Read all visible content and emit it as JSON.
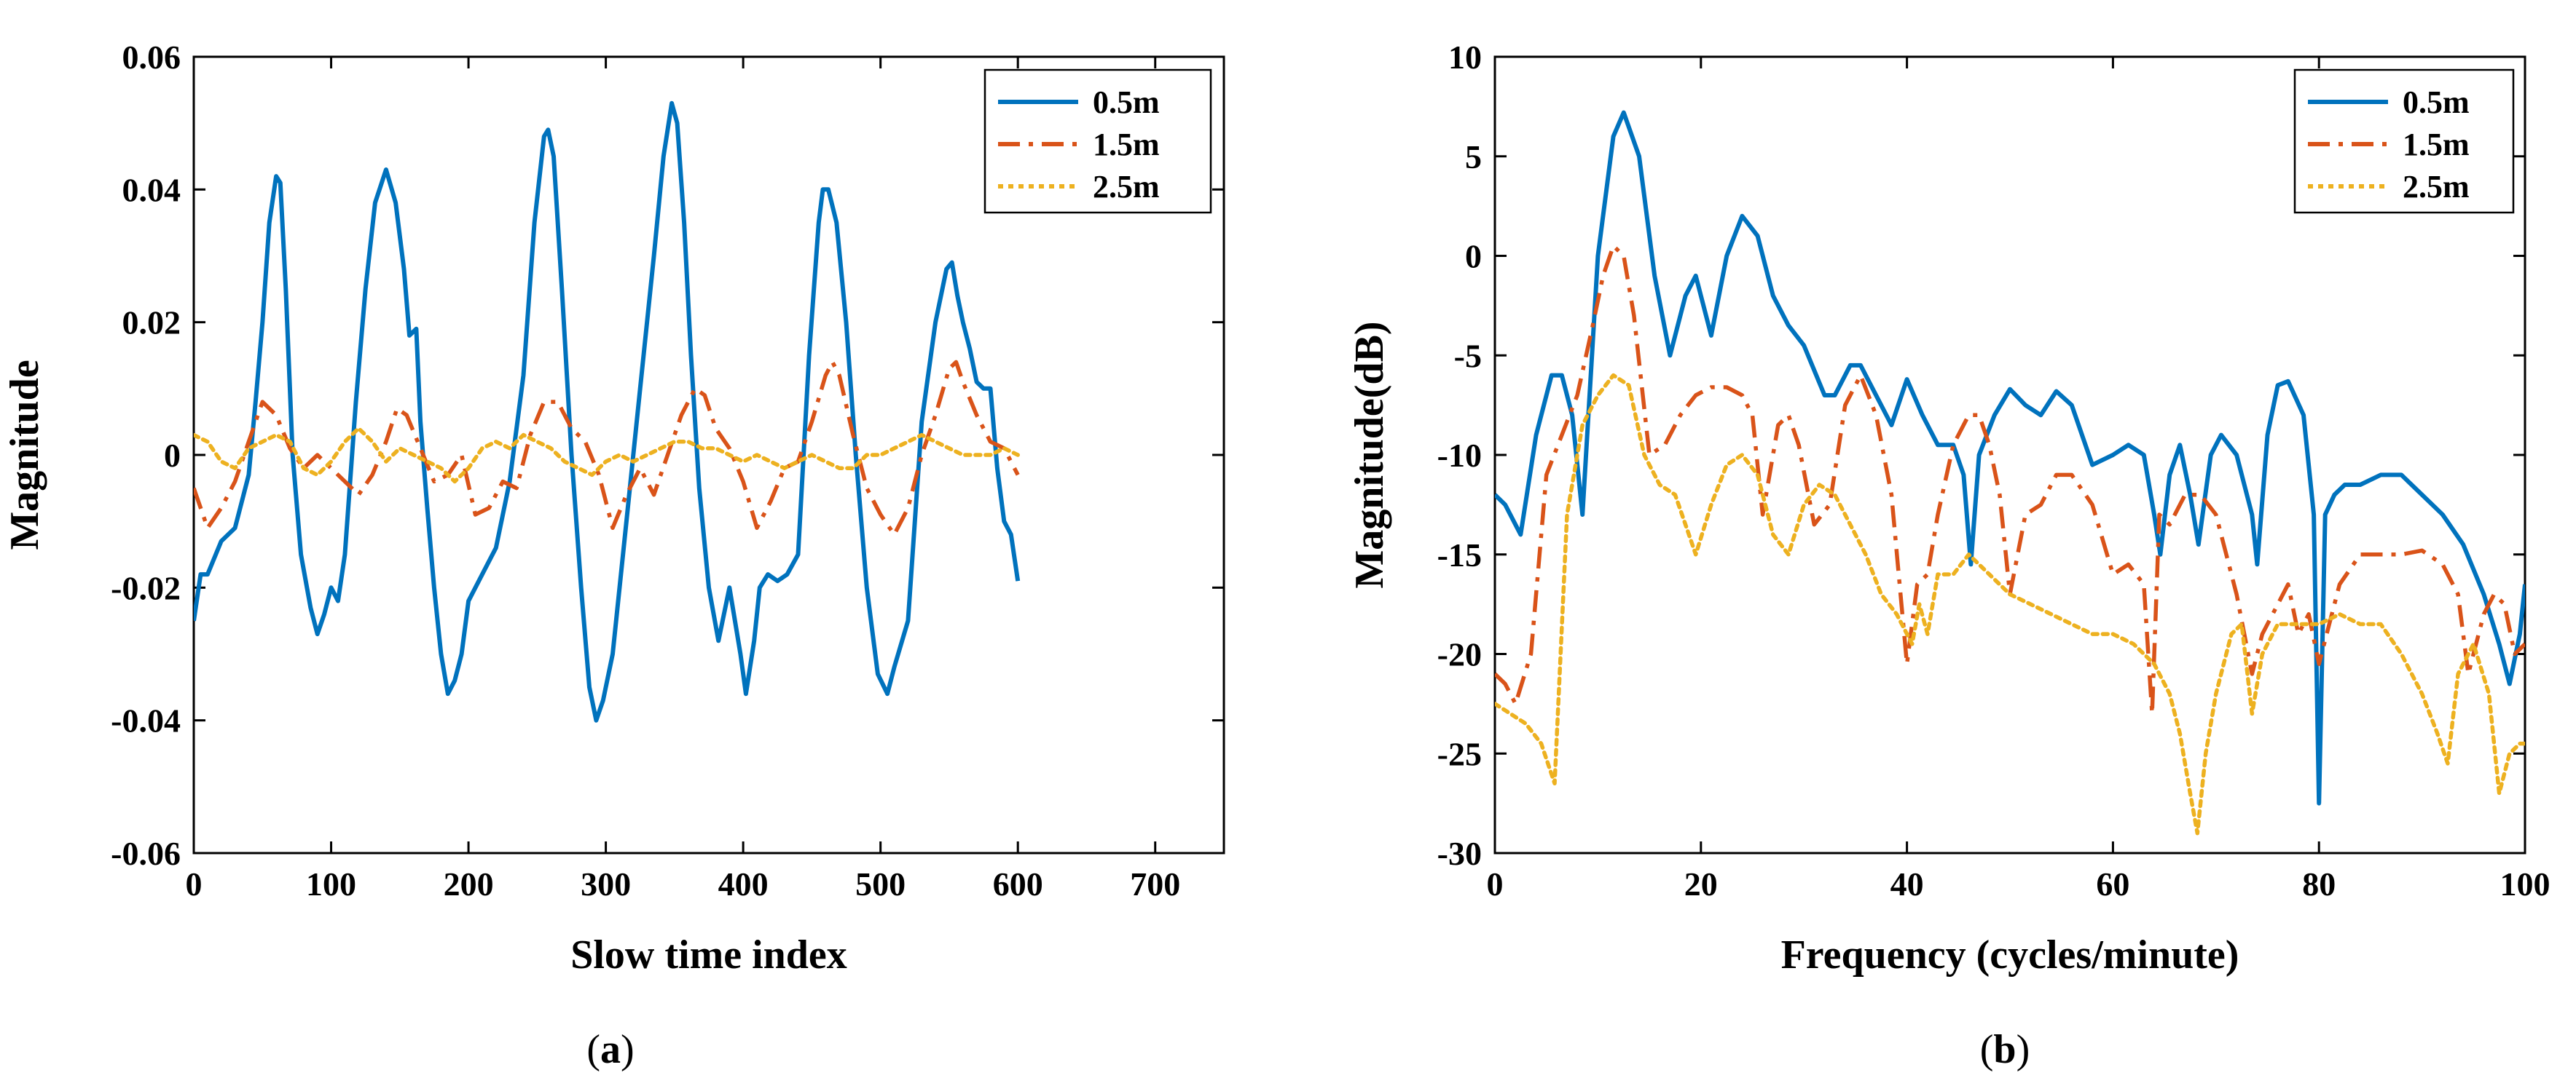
{
  "chart_data": [
    {
      "id": "a",
      "type": "line",
      "panel_label": {
        "open": "(",
        "letter": "a",
        "close": ")"
      },
      "title": "",
      "xlabel": "Slow time index",
      "ylabel": "Magnitude",
      "xlim": [
        0,
        750
      ],
      "ylim": [
        -0.06,
        0.06
      ],
      "xticks": [
        0,
        100,
        200,
        300,
        400,
        500,
        600,
        700
      ],
      "xtick_labels": [
        "0",
        "100",
        "200",
        "300",
        "400",
        "500",
        "600",
        "700"
      ],
      "yticks": [
        -0.06,
        -0.04,
        -0.02,
        0,
        0.02,
        0.04,
        0.06
      ],
      "ytick_labels": [
        "-0.06",
        "-0.04",
        "-0.02",
        "0",
        "0.02",
        "0.04",
        "0.06"
      ],
      "legend_position": "top-right",
      "series": [
        {
          "name": "0.5m",
          "color": "#0072BD",
          "style": "solid",
          "x": [
            0,
            5,
            10,
            20,
            30,
            40,
            45,
            50,
            55,
            60,
            63,
            67,
            72,
            78,
            85,
            90,
            95,
            100,
            105,
            110,
            118,
            125,
            132,
            140,
            147,
            153,
            157,
            162,
            165,
            170,
            175,
            180,
            185,
            190,
            195,
            200,
            210,
            220,
            230,
            240,
            248,
            255,
            258,
            262,
            268,
            275,
            282,
            288,
            293,
            298,
            305,
            315,
            325,
            335,
            342,
            348,
            352,
            357,
            362,
            368,
            375,
            382,
            390,
            398,
            402,
            408,
            412,
            418,
            425,
            432,
            440,
            448,
            455,
            458,
            462,
            468,
            475,
            482,
            490,
            498,
            505,
            510,
            520,
            530,
            540,
            548,
            552,
            556,
            560,
            565,
            570,
            575,
            580,
            585,
            590,
            595,
            600
          ],
          "y": [
            -0.025,
            -0.018,
            -0.018,
            -0.013,
            -0.011,
            -0.003,
            0.008,
            0.02,
            0.035,
            0.042,
            0.041,
            0.025,
            0.0,
            -0.015,
            -0.023,
            -0.027,
            -0.024,
            -0.02,
            -0.022,
            -0.015,
            0.008,
            0.025,
            0.038,
            0.043,
            0.038,
            0.028,
            0.018,
            0.019,
            0.005,
            -0.008,
            -0.02,
            -0.03,
            -0.036,
            -0.034,
            -0.03,
            -0.022,
            -0.018,
            -0.014,
            -0.004,
            0.012,
            0.035,
            0.048,
            0.049,
            0.045,
            0.025,
            0.0,
            -0.02,
            -0.035,
            -0.04,
            -0.037,
            -0.03,
            -0.01,
            0.01,
            0.03,
            0.045,
            0.053,
            0.05,
            0.035,
            0.015,
            -0.005,
            -0.02,
            -0.028,
            -0.02,
            -0.03,
            -0.036,
            -0.028,
            -0.02,
            -0.018,
            -0.019,
            -0.018,
            -0.015,
            0.015,
            0.035,
            0.04,
            0.04,
            0.035,
            0.02,
            0.0,
            -0.02,
            -0.033,
            -0.036,
            -0.032,
            -0.025,
            0.005,
            0.02,
            0.028,
            0.029,
            0.024,
            0.02,
            0.016,
            0.011,
            0.01,
            0.01,
            -0.002,
            -0.01,
            -0.012,
            -0.019
          ]
        },
        {
          "name": "1.5m",
          "color": "#D95319",
          "style": "dashdot",
          "x": [
            0,
            10,
            20,
            30,
            40,
            50,
            60,
            70,
            80,
            90,
            100,
            110,
            120,
            130,
            140,
            148,
            155,
            165,
            175,
            185,
            195,
            205,
            215,
            225,
            235,
            245,
            255,
            265,
            275,
            285,
            295,
            305,
            315,
            325,
            335,
            345,
            355,
            365,
            372,
            380,
            390,
            400,
            410,
            420,
            430,
            440,
            450,
            460,
            465,
            470,
            480,
            490,
            500,
            510,
            520,
            530,
            540,
            550,
            555,
            560,
            570,
            580,
            590,
            600
          ],
          "y": [
            -0.005,
            -0.011,
            -0.008,
            -0.004,
            0.002,
            0.008,
            0.006,
            0.001,
            -0.002,
            0.0,
            -0.002,
            -0.004,
            -0.006,
            -0.003,
            0.002,
            0.007,
            0.006,
            0.001,
            -0.004,
            -0.003,
            0.0,
            -0.009,
            -0.008,
            -0.004,
            -0.005,
            0.003,
            0.008,
            0.008,
            0.004,
            0.002,
            -0.003,
            -0.011,
            -0.006,
            -0.002,
            -0.006,
            0.0,
            0.006,
            0.01,
            0.009,
            0.004,
            0.001,
            -0.004,
            -0.011,
            -0.007,
            -0.002,
            -0.001,
            0.005,
            0.012,
            0.014,
            0.012,
            0.003,
            -0.005,
            -0.009,
            -0.012,
            -0.008,
            0.0,
            0.006,
            0.013,
            0.014,
            0.011,
            0.006,
            0.002,
            0.001,
            -0.003
          ]
        },
        {
          "name": "2.5m",
          "color": "#EDB120",
          "style": "dotted",
          "x": [
            0,
            10,
            20,
            30,
            40,
            50,
            60,
            70,
            80,
            90,
            100,
            110,
            120,
            130,
            140,
            150,
            160,
            170,
            180,
            190,
            200,
            210,
            220,
            230,
            240,
            250,
            260,
            270,
            280,
            290,
            300,
            310,
            320,
            330,
            340,
            350,
            360,
            370,
            380,
            390,
            400,
            410,
            420,
            430,
            440,
            450,
            460,
            470,
            480,
            490,
            500,
            510,
            520,
            530,
            540,
            550,
            560,
            570,
            580,
            590,
            600
          ],
          "y": [
            0.003,
            0.002,
            -0.001,
            -0.002,
            0.001,
            0.002,
            0.003,
            0.002,
            -0.002,
            -0.003,
            -0.001,
            0.002,
            0.004,
            0.002,
            -0.001,
            0.001,
            0.0,
            -0.001,
            -0.002,
            -0.004,
            -0.002,
            0.001,
            0.002,
            0.001,
            0.003,
            0.002,
            0.001,
            -0.001,
            -0.002,
            -0.003,
            -0.001,
            0.0,
            -0.001,
            0.0,
            0.001,
            0.002,
            0.002,
            0.001,
            0.001,
            0.0,
            -0.001,
            0.0,
            -0.001,
            -0.002,
            -0.001,
            0.0,
            -0.001,
            -0.002,
            -0.002,
            0.0,
            0.0,
            0.001,
            0.002,
            0.003,
            0.002,
            0.001,
            0.0,
            0.0,
            0.0,
            0.001,
            0.0
          ]
        }
      ]
    },
    {
      "id": "b",
      "type": "line",
      "panel_label": {
        "open": "(",
        "letter": "b",
        "close": ")"
      },
      "title": "",
      "xlabel": "Frequency (cycles/minute)",
      "ylabel": "Magnitude(dB)",
      "xlim": [
        0,
        100
      ],
      "ylim": [
        -30,
        10
      ],
      "xticks": [
        0,
        20,
        40,
        60,
        80,
        100
      ],
      "xtick_labels": [
        "0",
        "20",
        "40",
        "60",
        "80",
        "100"
      ],
      "yticks": [
        -30,
        -25,
        -20,
        -15,
        -10,
        -5,
        0,
        5,
        10
      ],
      "ytick_labels": [
        "-30",
        "-25",
        "-20",
        "-15",
        "-10",
        "-5",
        "0",
        "5",
        "10"
      ],
      "legend_position": "top-right",
      "series": [
        {
          "name": "0.5m",
          "color": "#0072BD",
          "style": "solid",
          "x": [
            0,
            1,
            2.5,
            4,
            5.5,
            6.5,
            7.5,
            8.5,
            10,
            11.5,
            12.5,
            14,
            15.5,
            17,
            18.5,
            19.5,
            21,
            22.5,
            24,
            25.5,
            27,
            28.5,
            30,
            32,
            33,
            34.5,
            35.5,
            37,
            38.5,
            40,
            41.5,
            43,
            44.5,
            45.5,
            46.2,
            47,
            48.5,
            50,
            51.5,
            53,
            54.5,
            56,
            58,
            60,
            61.5,
            63,
            64,
            64.6,
            65.5,
            66.5,
            67.5,
            68.3,
            69.5,
            70.5,
            72,
            73.5,
            74,
            75,
            76,
            77,
            78.5,
            79.5,
            80,
            80.6,
            81.5,
            82.5,
            84,
            86,
            88,
            90,
            92,
            94,
            96,
            97.5,
            98.5,
            99.5,
            100
          ],
          "y": [
            -12,
            -12.5,
            -14,
            -9,
            -6,
            -6,
            -8,
            -13,
            0,
            6,
            7.2,
            5,
            -1,
            -5,
            -2,
            -1,
            -4,
            0,
            2,
            1,
            -2,
            -3.5,
            -4.5,
            -7,
            -7,
            -5.5,
            -5.5,
            -7,
            -8.5,
            -6.2,
            -8,
            -9.5,
            -9.5,
            -11,
            -15.5,
            -10,
            -8,
            -6.7,
            -7.5,
            -8,
            -6.8,
            -7.5,
            -10.5,
            -10,
            -9.5,
            -10,
            -13,
            -15,
            -11,
            -9.5,
            -12,
            -14.5,
            -10,
            -9,
            -10,
            -13,
            -15.5,
            -9,
            -6.5,
            -6.3,
            -8,
            -13,
            -27.5,
            -13,
            -12,
            -11.5,
            -11.5,
            -11,
            -11,
            -12,
            -13,
            -14.5,
            -17,
            -19.5,
            -21.5,
            -19,
            -16.5
          ]
        },
        {
          "name": "1.5m",
          "color": "#D95319",
          "style": "dashdot",
          "x": [
            0,
            1,
            2,
            3.5,
            5,
            6.5,
            8,
            9.5,
            10.5,
            11.5,
            12.5,
            13.5,
            15,
            16.5,
            18,
            19.5,
            21,
            22.5,
            24,
            25,
            26,
            27.5,
            28.5,
            29.5,
            31,
            32.5,
            34,
            35.5,
            37,
            38.5,
            39.2,
            40,
            41,
            42,
            43,
            44.5,
            46,
            47,
            48,
            49,
            50,
            51.5,
            53,
            54.5,
            56,
            58,
            60,
            61.5,
            63,
            63.8,
            64.5,
            65.5,
            67,
            68.5,
            70,
            72,
            73.5,
            74.5,
            75.5,
            77,
            78,
            79,
            80,
            81,
            82,
            84,
            86,
            88,
            90,
            92,
            93.5,
            94.5,
            96,
            97,
            98,
            99,
            100
          ],
          "y": [
            -21,
            -21.5,
            -22.5,
            -20,
            -11,
            -9,
            -7,
            -3.5,
            -1,
            0.5,
            0,
            -3,
            -10,
            -9.5,
            -8,
            -7,
            -6.6,
            -6.6,
            -7,
            -8,
            -13,
            -8.5,
            -8,
            -9.5,
            -13.5,
            -12.5,
            -7.5,
            -6,
            -8,
            -12,
            -16,
            -20.5,
            -16.5,
            -16,
            -13,
            -9.5,
            -8,
            -8,
            -9.5,
            -12,
            -17,
            -13,
            -12.5,
            -11,
            -11,
            -12.5,
            -16,
            -15.5,
            -16.5,
            -23,
            -13,
            -13.5,
            -12,
            -12,
            -13,
            -17,
            -21,
            -19,
            -18,
            -16.5,
            -19,
            -18,
            -20.5,
            -18.5,
            -16.5,
            -15,
            -15,
            -15,
            -14.8,
            -15.5,
            -17,
            -21,
            -18,
            -17,
            -17.5,
            -20,
            -19.5
          ]
        },
        {
          "name": "2.5m",
          "color": "#EDB120",
          "style": "dotted",
          "x": [
            0,
            1.5,
            3,
            4.5,
            5.8,
            7,
            8.5,
            10,
            11.5,
            13,
            14.5,
            16,
            17.5,
            18.5,
            19.5,
            21,
            22.5,
            24,
            25.5,
            27,
            28.5,
            30,
            31.5,
            33,
            34.5,
            36,
            37.5,
            39,
            40.5,
            41.2,
            42,
            43,
            44.5,
            46,
            48,
            50,
            52,
            54,
            56,
            58,
            60,
            62,
            64,
            65.5,
            66.5,
            67.5,
            68.2,
            69,
            70,
            71.5,
            72.5,
            73.5,
            74.5,
            76,
            78,
            80,
            82,
            84,
            86,
            88,
            90,
            91.5,
            92.5,
            93.5,
            95,
            96.5,
            97.5,
            98.5,
            99.5,
            100
          ],
          "y": [
            -22.5,
            -23,
            -23.5,
            -24.5,
            -26.5,
            -13,
            -8.5,
            -7,
            -6,
            -6.5,
            -10,
            -11.5,
            -12,
            -13.5,
            -15,
            -12.5,
            -10.5,
            -10,
            -11,
            -14,
            -15,
            -12.5,
            -11.5,
            -12,
            -13.5,
            -15,
            -17,
            -18,
            -19.5,
            -17.5,
            -19,
            -16,
            -16,
            -15,
            -16,
            -17,
            -17.5,
            -18,
            -18.5,
            -19,
            -19,
            -19.5,
            -20.5,
            -22,
            -24,
            -27,
            -29,
            -25,
            -22,
            -19,
            -18.5,
            -23,
            -20,
            -18.5,
            -18.5,
            -18.5,
            -18,
            -18.5,
            -18.5,
            -20,
            -22,
            -24,
            -25.5,
            -21,
            -19.5,
            -22,
            -27,
            -25,
            -24.5,
            -24.5
          ]
        }
      ]
    }
  ]
}
